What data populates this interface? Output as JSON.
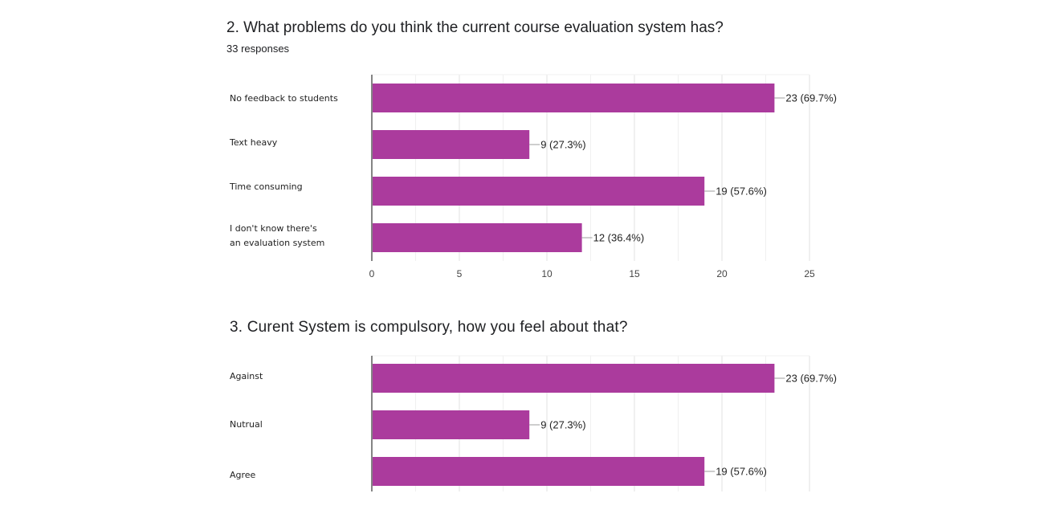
{
  "bar_color": "#ab3b9d",
  "chart_data": [
    {
      "type": "bar",
      "orientation": "horizontal",
      "title": "2. What problems do you think the current course evaluation system has?",
      "subtitle": "33 responses",
      "categories": [
        [
          "No feedback to students"
        ],
        [
          "Text heavy"
        ],
        [
          "Time consuming"
        ],
        [
          "I don't know there's",
          "an evaluation system"
        ]
      ],
      "values": [
        23,
        9,
        19,
        12
      ],
      "data_labels": [
        "23 (69.7%)",
        "9 (27.3%)",
        "19 (57.6%)",
        "12 (36.4%)"
      ],
      "xlim": [
        0,
        25
      ],
      "x_ticks": [
        "0",
        "5",
        "10",
        "15",
        "20",
        "25"
      ],
      "grid": true
    },
    {
      "type": "bar",
      "orientation": "horizontal",
      "title": "3. Curent System is compulsory, how you feel about that?",
      "categories": [
        [
          "Against"
        ],
        [
          "Nutrual"
        ],
        [
          "Agree"
        ]
      ],
      "values": [
        23,
        9,
        19
      ],
      "data_labels": [
        "23 (69.7%)",
        "9 (27.3%)",
        "19 (57.6%)"
      ],
      "xlim": [
        0,
        25
      ],
      "grid": true
    }
  ]
}
